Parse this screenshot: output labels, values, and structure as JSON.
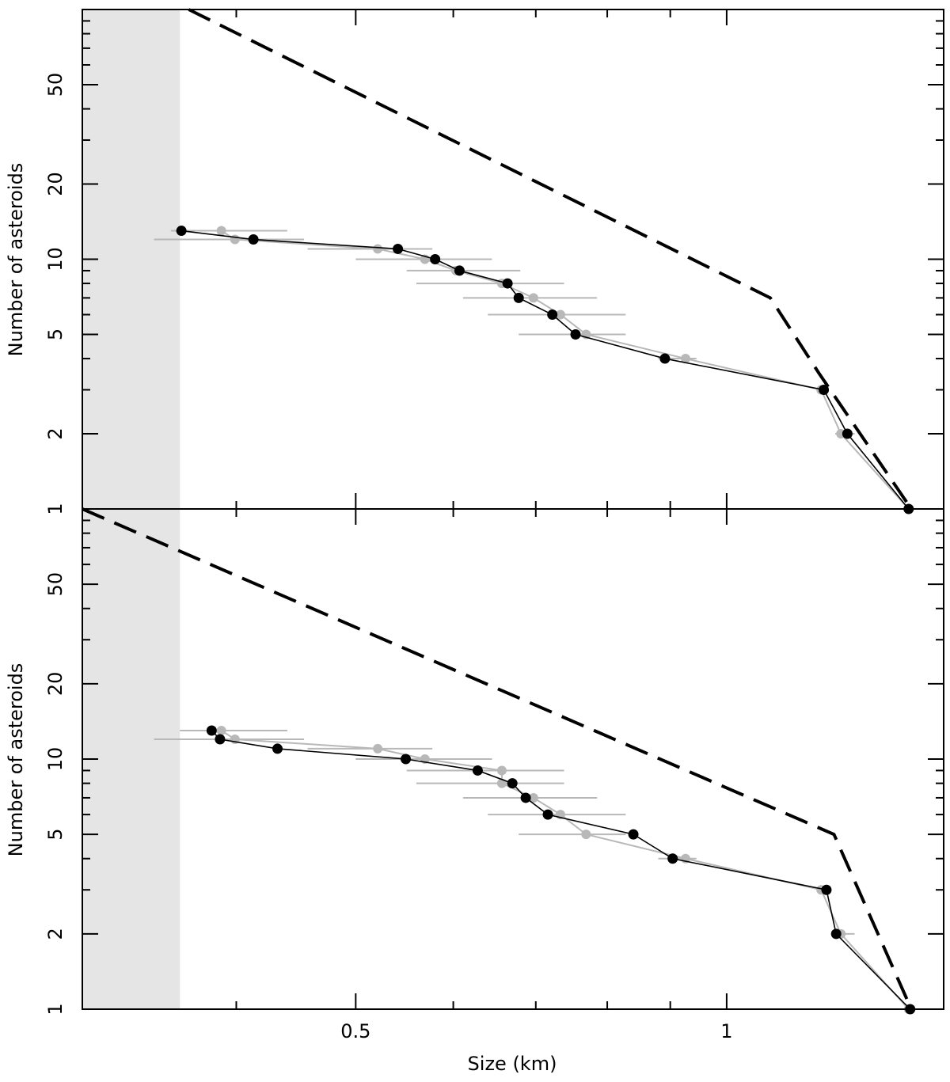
{
  "chart_data": [
    {
      "type": "line",
      "panel": "top",
      "xlabel": "",
      "ylabel": "Number of asteroids",
      "xscale": "log",
      "yscale": "log",
      "xlim": [
        0.3,
        1.5
      ],
      "ylim": [
        1,
        100
      ],
      "yticks": [
        1,
        2,
        5,
        10,
        20,
        50
      ],
      "ytick_labels": [
        "1",
        "2",
        "5",
        "10",
        "20",
        "50"
      ],
      "xticks": [
        0.5,
        1
      ],
      "xtick_labels": [],
      "shaded_region": {
        "x_from": 0.3,
        "x_to": 0.36,
        "color": "#e5e5e5"
      },
      "series": [
        {
          "name": "black-points",
          "color": "#000000",
          "x": [
            0.361,
            0.413,
            0.541,
            0.58,
            0.607,
            0.664,
            0.678,
            0.722,
            0.754,
            0.891,
            1.199,
            1.253,
            1.405
          ],
          "y": [
            13,
            12,
            11,
            10,
            9,
            8,
            7,
            6,
            5,
            4,
            3,
            2,
            1
          ]
        },
        {
          "name": "grey-points",
          "color": "#b8b8b8",
          "x": [
            0.389,
            0.399,
            0.521,
            0.569,
            0.603,
            0.657,
            0.697,
            0.733,
            0.769,
            0.926,
            1.193,
            1.238,
            1.405
          ],
          "y": [
            13,
            12,
            11,
            10,
            9,
            8,
            7,
            6,
            5,
            4,
            3,
            2,
            1
          ],
          "xerr_low": [
            0.354,
            0.343,
            0.457,
            0.5,
            0.55,
            0.56,
            0.611,
            0.64,
            0.678,
            0.88,
            1.19,
            1.225,
            1.405
          ],
          "xerr_high": [
            0.44,
            0.454,
            0.577,
            0.645,
            0.68,
            0.738,
            0.785,
            0.828,
            0.828,
            0.945,
            1.2,
            1.27,
            1.405
          ]
        },
        {
          "name": "dashed-model",
          "color": "#000000",
          "style": "dashed",
          "x": [
            0.366,
            1.085,
            1.188,
            1.412
          ],
          "y": [
            100,
            7,
            3.5,
            1
          ]
        }
      ]
    },
    {
      "type": "line",
      "panel": "bottom",
      "xlabel": "Size (km)",
      "ylabel": "Number of asteroids",
      "xscale": "log",
      "yscale": "log",
      "xlim": [
        0.3,
        1.5
      ],
      "ylim": [
        1,
        100
      ],
      "yticks": [
        1,
        2,
        5,
        10,
        20,
        50
      ],
      "ytick_labels": [
        "1",
        "2",
        "5",
        "10",
        "20",
        "50"
      ],
      "xticks": [
        0.5,
        1
      ],
      "xtick_labels": [
        "0.5",
        "1"
      ],
      "shaded_region": {
        "x_from": 0.3,
        "x_to": 0.36,
        "color": "#e5e5e5"
      },
      "series": [
        {
          "name": "black-points",
          "color": "#000000",
          "x": [
            0.382,
            0.388,
            0.432,
            0.549,
            0.628,
            0.67,
            0.687,
            0.716,
            0.84,
            0.904,
            1.205,
            1.227,
            1.409
          ],
          "y": [
            13,
            12,
            11,
            10,
            9,
            8,
            7,
            6,
            5,
            4,
            3,
            2,
            1
          ],
          "extra_point_note": "x-values ordered by y descending"
        },
        {
          "name": "grey-points",
          "color": "#b8b8b8",
          "x": [
            0.389,
            0.399,
            0.521,
            0.569,
            0.657,
            0.657,
            0.697,
            0.733,
            0.769,
            0.926,
            1.193,
            1.238,
            1.405
          ],
          "y": [
            13,
            12,
            11,
            10,
            9,
            8,
            7,
            6,
            5,
            4,
            3,
            2,
            1
          ],
          "xerr_low": [
            0.36,
            0.343,
            0.457,
            0.5,
            0.55,
            0.56,
            0.611,
            0.64,
            0.678,
            0.88,
            1.19,
            1.225,
            1.405
          ],
          "xerr_high": [
            0.44,
            0.454,
            0.577,
            0.645,
            0.738,
            0.738,
            0.785,
            0.828,
            0.828,
            0.945,
            1.2,
            1.27,
            1.405
          ]
        },
        {
          "name": "dashed-model",
          "color": "#000000",
          "style": "dashed",
          "x": [
            0.3,
            1.222,
            1.412
          ],
          "y": [
            100,
            5,
            1
          ]
        }
      ]
    }
  ]
}
